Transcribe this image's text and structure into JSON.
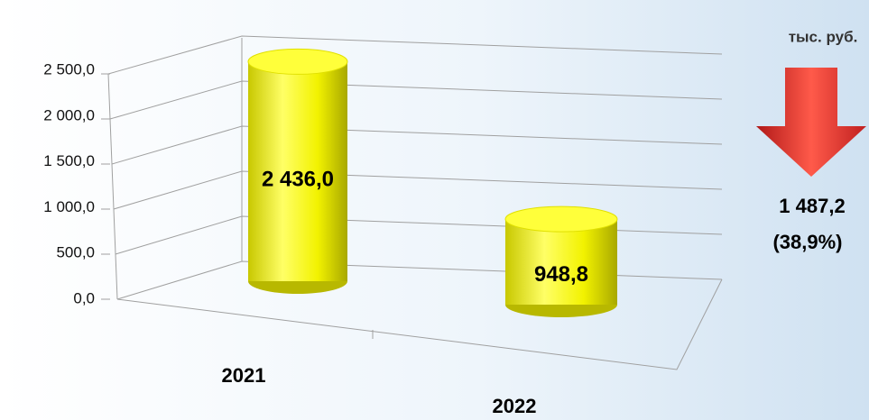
{
  "chart_data": {
    "type": "bar",
    "unit": "тыс. руб.",
    "categories": [
      "2021",
      "2022"
    ],
    "values": [
      2436.0,
      948.8
    ],
    "value_labels": [
      "2 436,0",
      "948,8"
    ],
    "color": "#ffff00",
    "ylim": [
      0,
      2500
    ],
    "yticks": [
      {
        "value": 0,
        "label": "0,0"
      },
      {
        "value": 500,
        "label": "500,0"
      },
      {
        "value": 1000,
        "label": "1 000,0"
      },
      {
        "value": 1500,
        "label": "1 500,0"
      },
      {
        "value": 2000,
        "label": "2 000,0"
      },
      {
        "value": 2500,
        "label": "2 500,0"
      }
    ],
    "grid": true,
    "annotations": [
      "1 487,2",
      "(38,9%)"
    ]
  }
}
